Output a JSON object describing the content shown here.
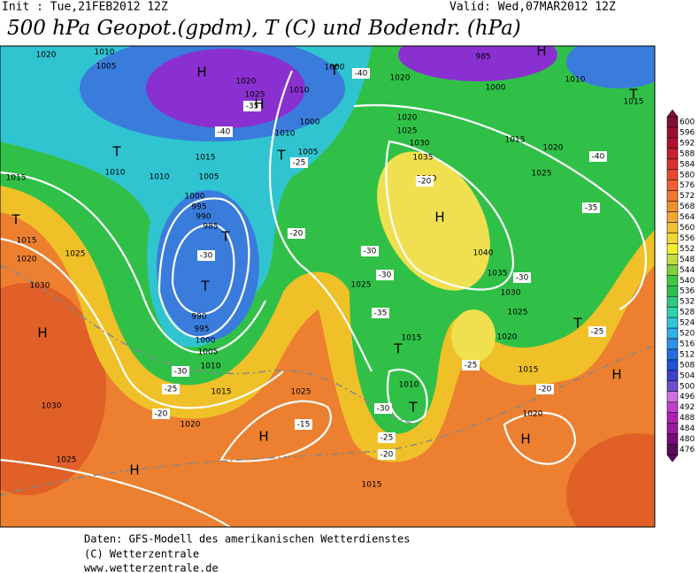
{
  "header": {
    "init": "Init : Tue,21FEB2012 12Z",
    "valid": "Valid: Wed,07MAR2012 12Z",
    "title": "500 hPa Geopot.(gpdm), T (C) und Bodendr. (hPa)"
  },
  "pressure_labels": [
    "1020",
    "1005",
    "1010",
    "1020",
    "1025",
    "1000",
    "1010",
    "1000",
    "1010",
    "1005",
    "1015",
    "1005",
    "1010",
    "1010",
    "1015",
    "1000",
    "995",
    "990",
    "985",
    "1015",
    "1020",
    "1025",
    "1030",
    "990",
    "995",
    "1000",
    "1005",
    "1010",
    "1015",
    "1020",
    "1025",
    "1030",
    "1025",
    "1020",
    "1020",
    "1025",
    "1030",
    "1035",
    "1040",
    "1040",
    "1035",
    "1030",
    "1025",
    "1020",
    "1025",
    "1015",
    "1010",
    "1015",
    "1015",
    "1020",
    "1025",
    "1010",
    "1000",
    "985",
    "1015",
    "1020",
    "1015"
  ],
  "temperature_labels": [
    "-40",
    "-35",
    "-40",
    "-25",
    "-20",
    "-30",
    "-30",
    "-30",
    "-35",
    "-30",
    "-25",
    "-20",
    "-15",
    "-25",
    "-20",
    "-30",
    "-25",
    "-20",
    "-25",
    "-30",
    "-35",
    "-40",
    "-20"
  ],
  "pressure_centers": [
    "H",
    "H",
    "T",
    "T",
    "T",
    "T",
    "T",
    "H",
    "H",
    "H",
    "H",
    "T",
    "H",
    "T",
    "T",
    "T",
    "T",
    "H",
    "H"
  ],
  "colorbar": {
    "values": [
      476,
      480,
      484,
      488,
      492,
      496,
      500,
      504,
      508,
      512,
      516,
      520,
      524,
      528,
      532,
      536,
      540,
      544,
      548,
      552,
      556,
      560,
      564,
      568,
      572,
      576,
      580,
      584,
      588,
      592,
      596,
      600
    ],
    "colors": [
      "#5a0a5a",
      "#7a0a7a",
      "#9a1a9a",
      "#b020b0",
      "#c040c8",
      "#d070e0",
      "#6a50d0",
      "#4040c8",
      "#2050d8",
      "#2070e0",
      "#3090e8",
      "#30b0e8",
      "#30c8d8",
      "#30d0b0",
      "#30c880",
      "#30c050",
      "#40c840",
      "#80d040",
      "#c0e040",
      "#f0f030",
      "#f0d830",
      "#f0c030",
      "#f0a830",
      "#f09030",
      "#f07830",
      "#f06030",
      "#e84830",
      "#d83030",
      "#c82030",
      "#b01030",
      "#981030",
      "#801030"
    ]
  },
  "footer": [
    "Daten: GFS-Modell des amerikanischen Wetterdienstes",
    "(C) Wetterzentrale",
    "www.wetterzentrale.de"
  ]
}
